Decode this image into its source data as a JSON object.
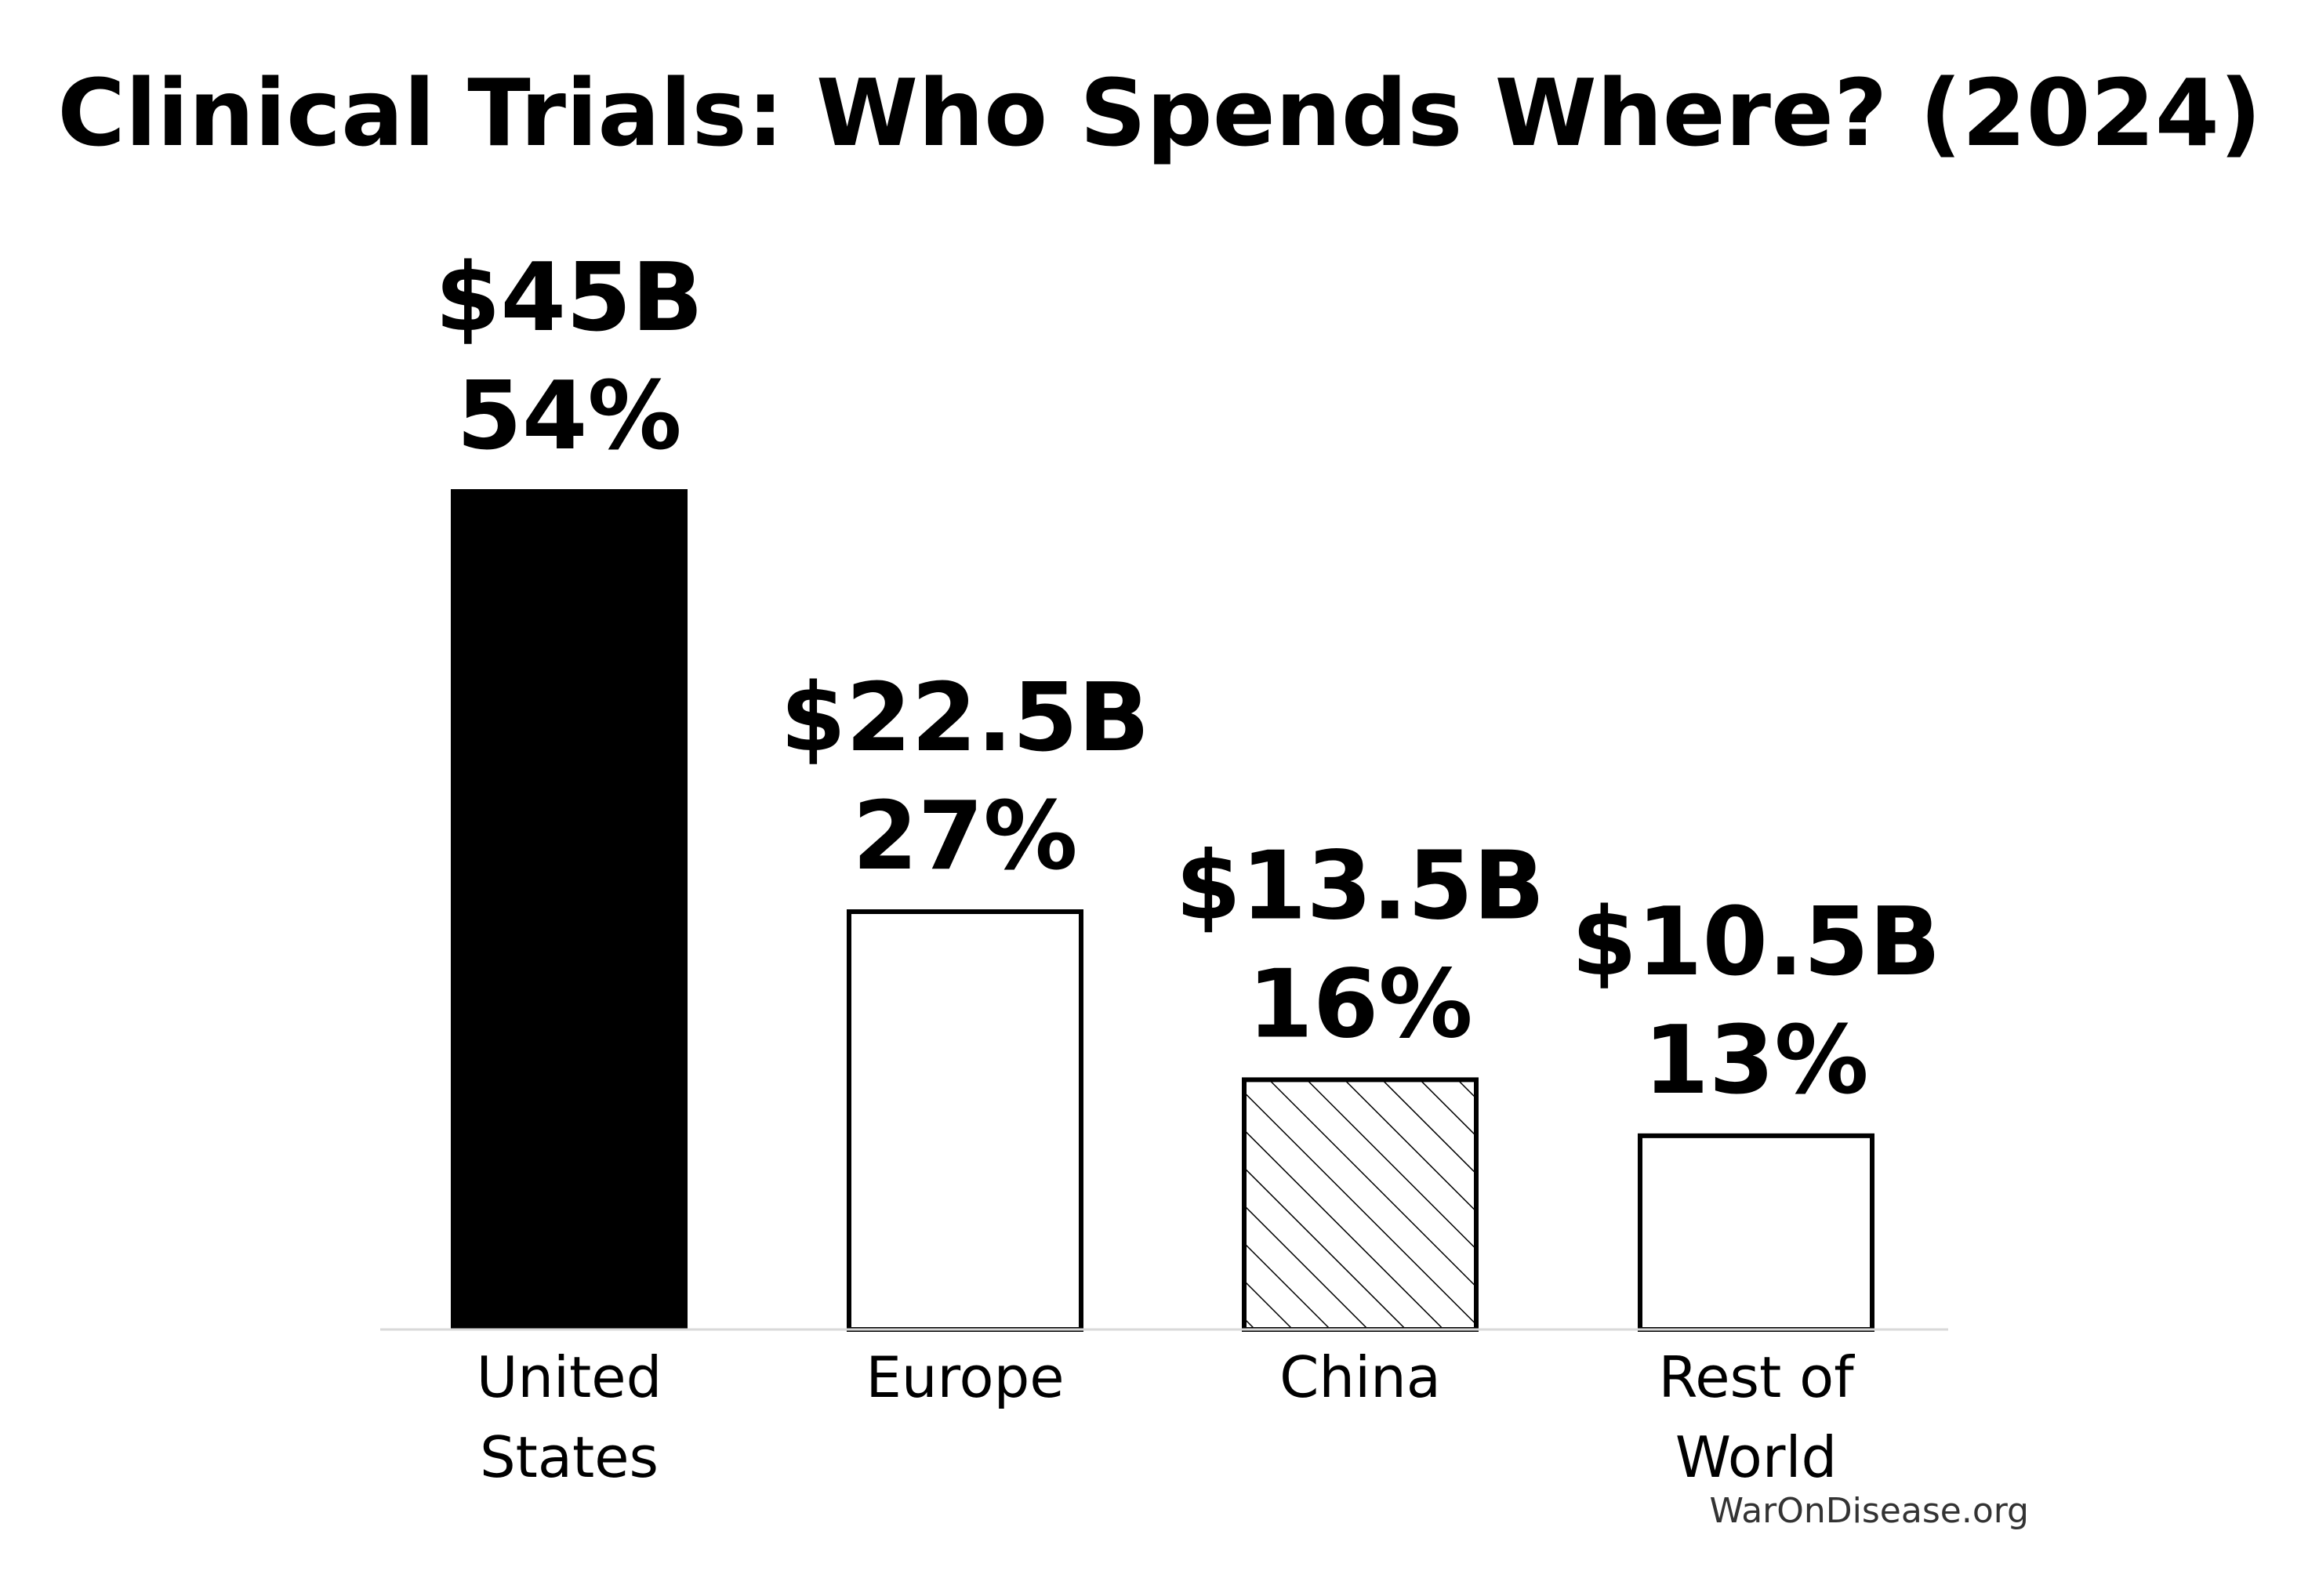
{
  "chart_data": {
    "type": "bar",
    "title": "Clinical Trials: Who Spends Where? (2024)",
    "xlabel": "",
    "ylabel": "",
    "ylim": [
      0,
      54
    ],
    "grid": false,
    "legend": false,
    "categories": [
      {
        "lines": [
          "United",
          "States"
        ]
      },
      {
        "lines": [
          "Europe"
        ]
      },
      {
        "lines": [
          "China"
        ]
      },
      {
        "lines": [
          "Rest of",
          "World"
        ]
      }
    ],
    "values": [
      45,
      22.5,
      13.5,
      10.5
    ],
    "value_labels": [
      "$45B",
      "$22.5B",
      "$13.5B",
      "$10.5B"
    ],
    "percent_labels": [
      "54%",
      "27%",
      "16%",
      "13%"
    ],
    "bar_styles": [
      "solid-black",
      "outline",
      "hatched",
      "outline"
    ],
    "unit": "billion USD"
  },
  "colors": {
    "primary": "#000000",
    "background": "#ffffff",
    "baseline": "#d9d9d9",
    "watermark": "#333333"
  },
  "footer": {
    "watermark": "WarOnDisease.org"
  }
}
